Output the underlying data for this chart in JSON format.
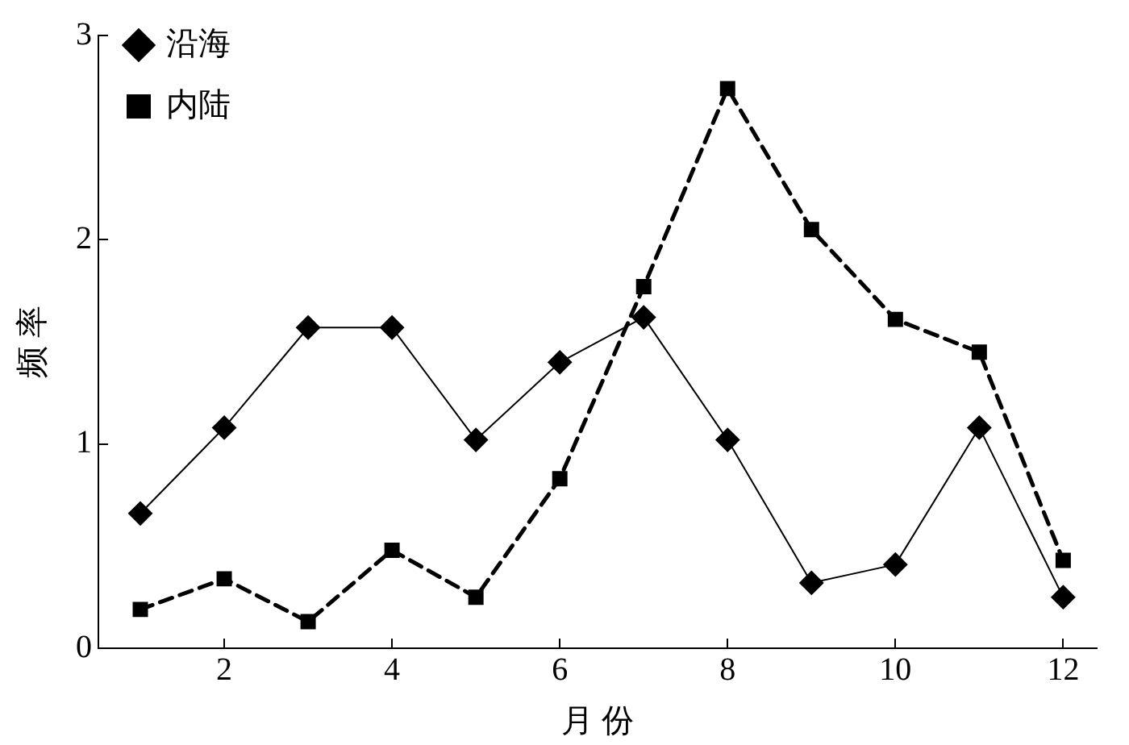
{
  "chart_data": {
    "type": "line",
    "xlabel": "月 份",
    "ylabel": "频 率",
    "x": [
      1,
      2,
      3,
      4,
      5,
      6,
      7,
      8,
      9,
      10,
      11,
      12
    ],
    "xlim": [
      0.5,
      12.4
    ],
    "xticks": [
      2,
      4,
      6,
      8,
      10,
      12
    ],
    "ylim": [
      0,
      3
    ],
    "yticks": [
      0,
      1,
      2,
      3
    ],
    "grid": false,
    "legend": "top left",
    "series": [
      {
        "name": "沿海",
        "color": "#000000",
        "marker": "diamond",
        "line_style": "solid",
        "values": [
          0.66,
          1.08,
          1.57,
          1.57,
          1.02,
          1.4,
          1.62,
          1.02,
          0.32,
          0.41,
          1.08,
          0.25
        ]
      },
      {
        "name": "内陆",
        "color": "#000000",
        "marker": "square",
        "line_style": "dashed",
        "values": [
          0.19,
          0.34,
          0.13,
          0.48,
          0.25,
          0.83,
          1.77,
          2.74,
          2.05,
          1.61,
          1.45,
          0.43
        ]
      }
    ]
  }
}
